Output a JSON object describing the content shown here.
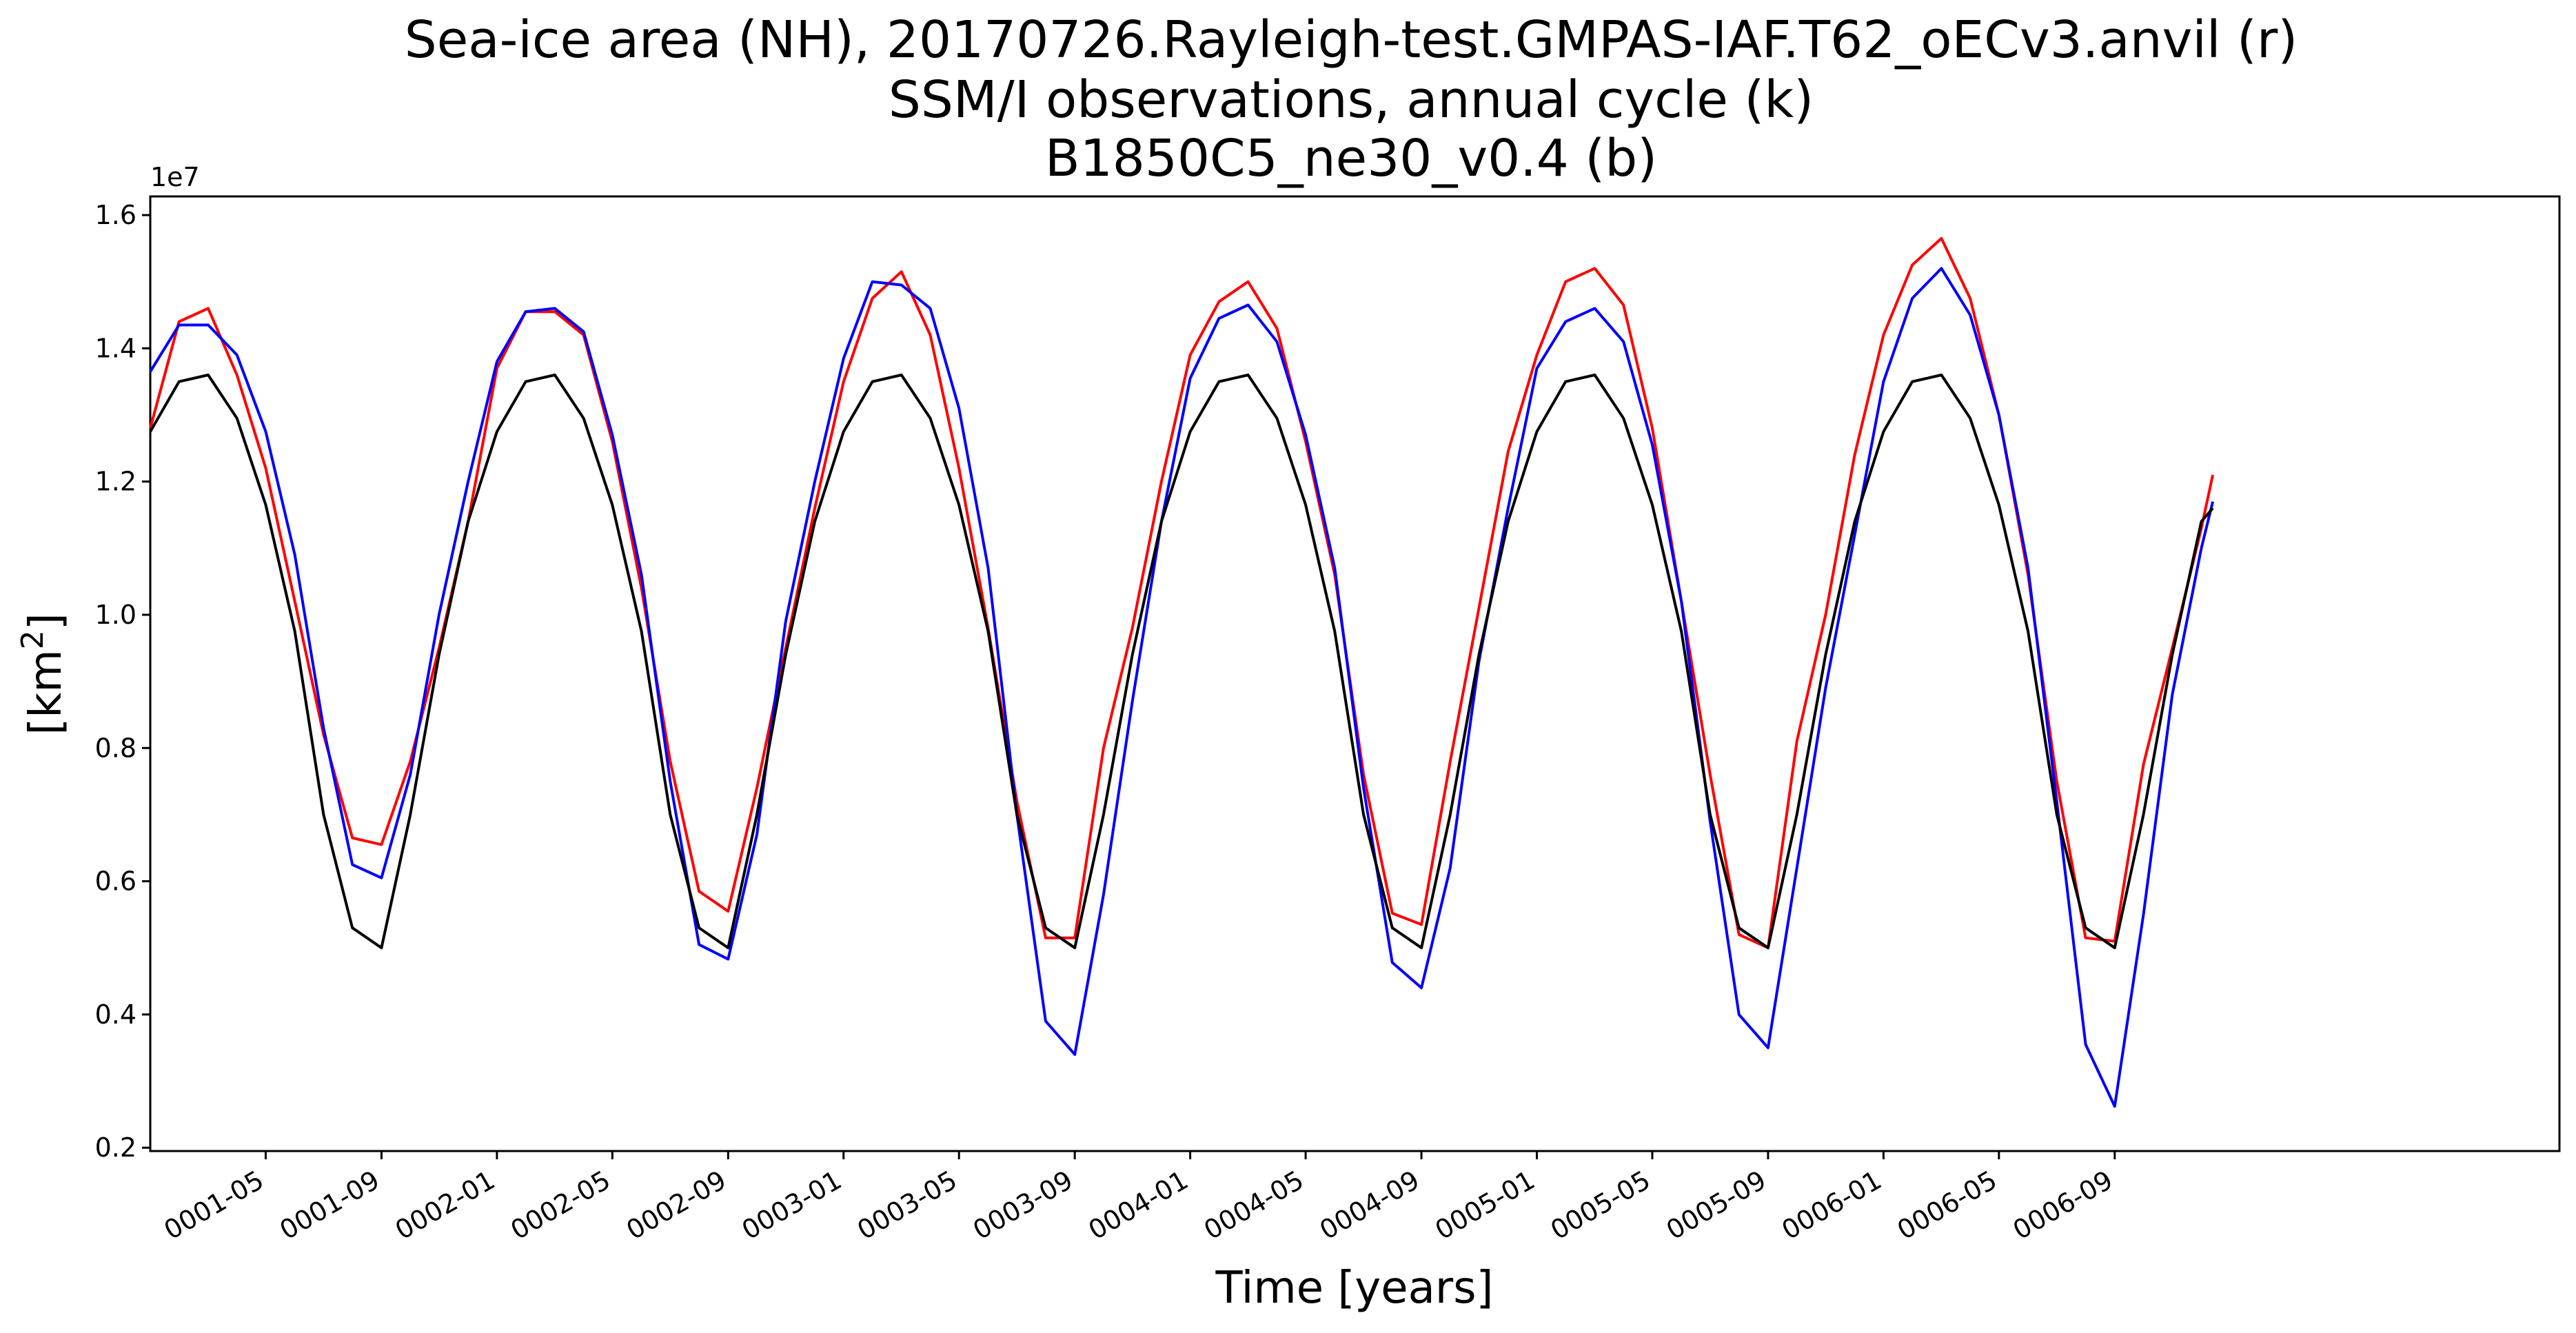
{
  "chart_data": {
    "type": "line",
    "title_lines": [
      "Sea-ice area (NH), 20170726.Rayleigh-test.GMPAS-IAF.T62_oECv3.anvil (r)",
      "SSM/I observations, annual cycle (k)",
      "B1850C5_ne30_v0.4 (b)"
    ],
    "xlabel": "Time [years]",
    "ylabel_text": "[km",
    "ylabel_sup": "2",
    "ylabel_close": "]",
    "y_offset_label": "1e7",
    "xlim": [
      0.0,
      6.95
    ],
    "ylim": [
      0.195,
      1.628
    ],
    "y_ticks": [
      0.2,
      0.4,
      0.6,
      0.8,
      1.0,
      1.2,
      1.4,
      1.6
    ],
    "y_tick_labels": [
      "0.2",
      "0.4",
      "0.6",
      "0.8",
      "1.0",
      "1.2",
      "1.4",
      "1.6"
    ],
    "x_ticks": [
      0.333,
      0.667,
      1.0,
      1.333,
      1.667,
      2.0,
      2.333,
      2.667,
      3.0,
      3.333,
      3.667,
      4.0,
      4.333,
      4.667,
      5.0,
      5.333,
      5.667
    ],
    "x_tick_labels": [
      "0001-05",
      "0001-09",
      "0002-01",
      "0002-05",
      "0002-09",
      "0003-01",
      "0003-05",
      "0003-09",
      "0004-01",
      "0004-05",
      "0004-09",
      "0005-01",
      "0005-05",
      "0005-09",
      "0006-01",
      "0006-05",
      "0006-09"
    ],
    "grid": false,
    "series": [
      {
        "color": "#ff0000",
        "x": [
          0.0,
          0.083,
          0.167,
          0.25,
          0.333,
          0.417,
          0.5,
          0.583,
          0.667,
          0.75,
          0.833,
          0.917,
          1.0,
          1.083,
          1.167,
          1.25,
          1.333,
          1.417,
          1.5,
          1.583,
          1.667,
          1.75,
          1.833,
          1.917,
          2.0,
          2.083,
          2.167,
          2.25,
          2.333,
          2.417,
          2.5,
          2.583,
          2.667,
          2.75,
          2.833,
          2.917,
          3.0,
          3.083,
          3.167,
          3.25,
          3.333,
          3.417,
          3.5,
          3.583,
          3.667,
          3.75,
          3.833,
          3.917,
          4.0,
          4.083,
          4.167,
          4.25,
          4.333,
          4.417,
          4.5,
          4.583,
          4.667,
          4.75,
          4.833,
          4.917,
          5.0,
          5.083,
          5.167,
          5.25,
          5.333,
          5.417,
          5.5,
          5.583,
          5.667,
          5.75,
          5.833,
          5.917,
          5.95
        ],
        "values": [
          1.28,
          1.44,
          1.46,
          1.36,
          1.22,
          1.02,
          0.82,
          0.665,
          0.655,
          0.78,
          0.95,
          1.14,
          1.37,
          1.455,
          1.455,
          1.42,
          1.26,
          1.04,
          0.78,
          0.585,
          0.555,
          0.74,
          0.95,
          1.16,
          1.35,
          1.475,
          1.515,
          1.42,
          1.22,
          0.98,
          0.72,
          0.515,
          0.515,
          0.8,
          0.98,
          1.2,
          1.39,
          1.47,
          1.5,
          1.43,
          1.26,
          1.06,
          0.76,
          0.552,
          0.535,
          0.78,
          1.01,
          1.245,
          1.39,
          1.5,
          1.52,
          1.465,
          1.28,
          1.02,
          0.76,
          0.52,
          0.5,
          0.81,
          1.0,
          1.24,
          1.42,
          1.525,
          1.565,
          1.475,
          1.3,
          1.06,
          0.75,
          0.515,
          0.51,
          0.775,
          0.95,
          1.13,
          1.21
        ]
      },
      {
        "color": "#0000ff",
        "x": [
          0.0,
          0.083,
          0.167,
          0.25,
          0.333,
          0.417,
          0.5,
          0.583,
          0.667,
          0.75,
          0.833,
          0.917,
          1.0,
          1.083,
          1.167,
          1.25,
          1.333,
          1.417,
          1.5,
          1.583,
          1.667,
          1.75,
          1.833,
          1.917,
          2.0,
          2.083,
          2.167,
          2.25,
          2.333,
          2.417,
          2.5,
          2.583,
          2.667,
          2.75,
          2.833,
          2.917,
          3.0,
          3.083,
          3.167,
          3.25,
          3.333,
          3.417,
          3.5,
          3.583,
          3.667,
          3.75,
          3.833,
          3.917,
          4.0,
          4.083,
          4.167,
          4.25,
          4.333,
          4.417,
          4.5,
          4.583,
          4.667,
          4.75,
          4.833,
          4.917,
          5.0,
          5.083,
          5.167,
          5.25,
          5.333,
          5.417,
          5.5,
          5.583,
          5.667,
          5.75,
          5.833,
          5.917,
          5.95
        ],
        "values": [
          1.365,
          1.435,
          1.435,
          1.39,
          1.275,
          1.09,
          0.83,
          0.625,
          0.605,
          0.76,
          1.0,
          1.2,
          1.38,
          1.455,
          1.46,
          1.425,
          1.27,
          1.06,
          0.75,
          0.505,
          0.483,
          0.67,
          0.99,
          1.2,
          1.385,
          1.5,
          1.495,
          1.46,
          1.31,
          1.07,
          0.7,
          0.39,
          0.34,
          0.58,
          0.87,
          1.14,
          1.355,
          1.445,
          1.465,
          1.41,
          1.27,
          1.07,
          0.74,
          0.478,
          0.44,
          0.62,
          0.93,
          1.16,
          1.37,
          1.44,
          1.46,
          1.41,
          1.255,
          1.02,
          0.69,
          0.4,
          0.35,
          0.62,
          0.89,
          1.12,
          1.35,
          1.475,
          1.52,
          1.45,
          1.3,
          1.07,
          0.72,
          0.355,
          0.262,
          0.55,
          0.88,
          1.1,
          1.17
        ]
      },
      {
        "color": "#000000",
        "x": [
          0.0,
          0.083,
          0.167,
          0.25,
          0.333,
          0.417,
          0.5,
          0.583,
          0.667,
          0.75,
          0.833,
          0.917,
          1.0,
          1.083,
          1.167,
          1.25,
          1.333,
          1.417,
          1.5,
          1.583,
          1.667,
          1.75,
          1.833,
          1.917,
          2.0,
          2.083,
          2.167,
          2.25,
          2.333,
          2.417,
          2.5,
          2.583,
          2.667,
          2.75,
          2.833,
          2.917,
          3.0,
          3.083,
          3.167,
          3.25,
          3.333,
          3.417,
          3.5,
          3.583,
          3.667,
          3.75,
          3.833,
          3.917,
          4.0,
          4.083,
          4.167,
          4.25,
          4.333,
          4.417,
          4.5,
          4.583,
          4.667,
          4.75,
          4.833,
          4.917,
          5.0,
          5.083,
          5.167,
          5.25,
          5.333,
          5.417,
          5.5,
          5.583,
          5.667,
          5.75,
          5.833,
          5.917,
          5.95
        ],
        "values": [
          1.275,
          1.35,
          1.36,
          1.295,
          1.165,
          0.975,
          0.7,
          0.53,
          0.5,
          0.7,
          0.94,
          1.14,
          1.275,
          1.35,
          1.36,
          1.295,
          1.165,
          0.975,
          0.7,
          0.53,
          0.5,
          0.7,
          0.94,
          1.14,
          1.275,
          1.35,
          1.36,
          1.295,
          1.165,
          0.975,
          0.7,
          0.53,
          0.5,
          0.7,
          0.94,
          1.14,
          1.275,
          1.35,
          1.36,
          1.295,
          1.165,
          0.975,
          0.7,
          0.53,
          0.5,
          0.7,
          0.94,
          1.14,
          1.275,
          1.35,
          1.36,
          1.295,
          1.165,
          0.975,
          0.7,
          0.53,
          0.5,
          0.7,
          0.94,
          1.14,
          1.275,
          1.35,
          1.36,
          1.295,
          1.165,
          0.975,
          0.7,
          0.53,
          0.5,
          0.7,
          0.94,
          1.14,
          1.16
        ]
      }
    ]
  }
}
